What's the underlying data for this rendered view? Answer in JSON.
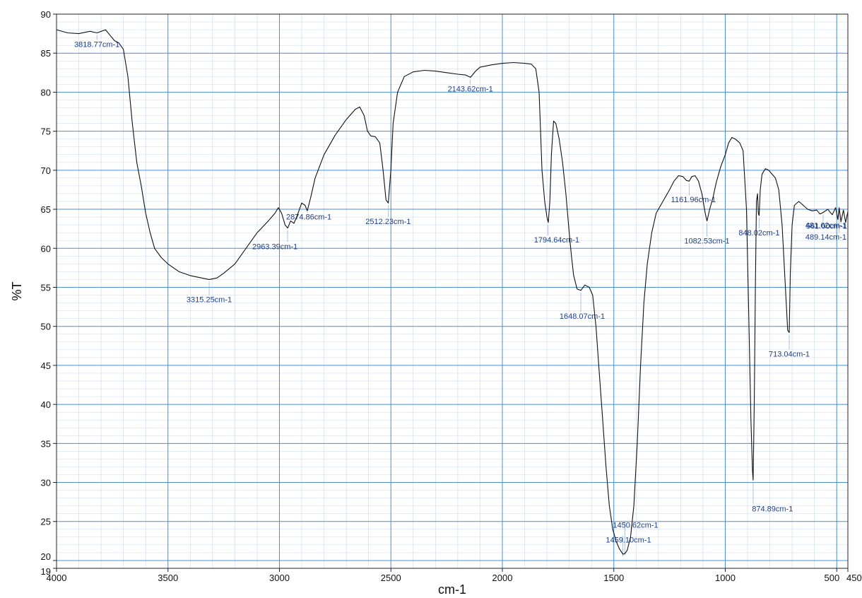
{
  "chart_data": {
    "type": "line",
    "title": "",
    "xlabel": "cm-1",
    "ylabel": "%T",
    "xlim": [
      4000,
      450
    ],
    "ylim": [
      19,
      90
    ],
    "x_axis_reversed": true,
    "grid": true,
    "x_ticks": [
      {
        "value": 4000,
        "label": "4000"
      },
      {
        "value": 3500,
        "label": "3500"
      },
      {
        "value": 3000,
        "label": "3000"
      },
      {
        "value": 2500,
        "label": "2500"
      },
      {
        "value": 2000,
        "label": "2000"
      },
      {
        "value": 1500,
        "label": "1500"
      },
      {
        "value": 1000,
        "label": "1000"
      },
      {
        "value": 500,
        "label": "500"
      },
      {
        "value": 450,
        "label": "450"
      }
    ],
    "y_ticks": [
      {
        "value": 90,
        "label": "90"
      },
      {
        "value": 85,
        "label": "85"
      },
      {
        "value": 80,
        "label": "80"
      },
      {
        "value": 75,
        "label": "75"
      },
      {
        "value": 70,
        "label": "70"
      },
      {
        "value": 65,
        "label": "65"
      },
      {
        "value": 60,
        "label": "60"
      },
      {
        "value": 55,
        "label": "55"
      },
      {
        "value": 50,
        "label": "50"
      },
      {
        "value": 45,
        "label": "45"
      },
      {
        "value": 40,
        "label": "40"
      },
      {
        "value": 35,
        "label": "35"
      },
      {
        "value": 30,
        "label": "30"
      },
      {
        "value": 25,
        "label": "25"
      },
      {
        "value": 20,
        "label": "20"
      },
      {
        "value": 19,
        "label": "19"
      }
    ],
    "series": [
      {
        "points": [
          [
            4000,
            88.0
          ],
          [
            3950,
            87.6
          ],
          [
            3900,
            87.5
          ],
          [
            3850,
            87.8
          ],
          [
            3818,
            87.6
          ],
          [
            3780,
            88.0
          ],
          [
            3760,
            87.3
          ],
          [
            3740,
            86.6
          ],
          [
            3720,
            86.3
          ],
          [
            3700,
            85.5
          ],
          [
            3680,
            82.0
          ],
          [
            3660,
            76.0
          ],
          [
            3640,
            71.0
          ],
          [
            3620,
            68.0
          ],
          [
            3600,
            64.5
          ],
          [
            3580,
            62.0
          ],
          [
            3560,
            60.0
          ],
          [
            3530,
            58.8
          ],
          [
            3500,
            58.0
          ],
          [
            3450,
            57.0
          ],
          [
            3400,
            56.5
          ],
          [
            3350,
            56.2
          ],
          [
            3315,
            56.0
          ],
          [
            3280,
            56.2
          ],
          [
            3250,
            56.8
          ],
          [
            3200,
            58.0
          ],
          [
            3150,
            60.0
          ],
          [
            3100,
            62.0
          ],
          [
            3050,
            63.5
          ],
          [
            3020,
            64.5
          ],
          [
            3005,
            65.2
          ],
          [
            2990,
            64.5
          ],
          [
            2975,
            63.0
          ],
          [
            2963,
            62.6
          ],
          [
            2950,
            63.5
          ],
          [
            2935,
            63.2
          ],
          [
            2920,
            64.2
          ],
          [
            2900,
            65.8
          ],
          [
            2885,
            65.5
          ],
          [
            2875,
            64.8
          ],
          [
            2860,
            66.5
          ],
          [
            2840,
            69.0
          ],
          [
            2800,
            72.0
          ],
          [
            2750,
            74.5
          ],
          [
            2700,
            76.5
          ],
          [
            2660,
            77.8
          ],
          [
            2640,
            78.1
          ],
          [
            2620,
            77.0
          ],
          [
            2605,
            75.0
          ],
          [
            2590,
            74.4
          ],
          [
            2570,
            74.3
          ],
          [
            2550,
            73.5
          ],
          [
            2535,
            70.0
          ],
          [
            2522,
            66.2
          ],
          [
            2512,
            65.8
          ],
          [
            2500,
            70.0
          ],
          [
            2490,
            76.0
          ],
          [
            2470,
            80.0
          ],
          [
            2440,
            82.0
          ],
          [
            2400,
            82.6
          ],
          [
            2350,
            82.8
          ],
          [
            2300,
            82.7
          ],
          [
            2250,
            82.5
          ],
          [
            2200,
            82.3
          ],
          [
            2165,
            82.2
          ],
          [
            2143,
            81.9
          ],
          [
            2120,
            82.7
          ],
          [
            2100,
            83.2
          ],
          [
            2050,
            83.5
          ],
          [
            2000,
            83.7
          ],
          [
            1950,
            83.8
          ],
          [
            1900,
            83.7
          ],
          [
            1870,
            83.6
          ],
          [
            1850,
            83.0
          ],
          [
            1835,
            80.0
          ],
          [
            1822,
            70.0
          ],
          [
            1810,
            66.0
          ],
          [
            1800,
            64.0
          ],
          [
            1794,
            63.3
          ],
          [
            1787,
            66.0
          ],
          [
            1780,
            72.0
          ],
          [
            1770,
            76.3
          ],
          [
            1760,
            76.0
          ],
          [
            1745,
            74.0
          ],
          [
            1730,
            71.0
          ],
          [
            1715,
            67.0
          ],
          [
            1700,
            62.0
          ],
          [
            1690,
            59.0
          ],
          [
            1680,
            56.5
          ],
          [
            1665,
            54.8
          ],
          [
            1648,
            54.6
          ],
          [
            1630,
            55.3
          ],
          [
            1610,
            55.0
          ],
          [
            1595,
            54.0
          ],
          [
            1580,
            50.0
          ],
          [
            1565,
            44.0
          ],
          [
            1550,
            38.0
          ],
          [
            1535,
            32.0
          ],
          [
            1520,
            27.0
          ],
          [
            1505,
            24.0
          ],
          [
            1490,
            22.5
          ],
          [
            1475,
            21.5
          ],
          [
            1459,
            20.8
          ],
          [
            1450,
            20.9
          ],
          [
            1440,
            21.3
          ],
          [
            1425,
            23.0
          ],
          [
            1410,
            27.0
          ],
          [
            1395,
            35.0
          ],
          [
            1380,
            45.0
          ],
          [
            1365,
            53.0
          ],
          [
            1350,
            58.0
          ],
          [
            1330,
            62.0
          ],
          [
            1310,
            64.5
          ],
          [
            1290,
            65.5
          ],
          [
            1270,
            66.5
          ],
          [
            1250,
            67.5
          ],
          [
            1230,
            68.6
          ],
          [
            1210,
            69.3
          ],
          [
            1190,
            69.2
          ],
          [
            1175,
            68.7
          ],
          [
            1162,
            68.6
          ],
          [
            1150,
            69.2
          ],
          [
            1135,
            69.3
          ],
          [
            1120,
            68.6
          ],
          [
            1105,
            67.0
          ],
          [
            1090,
            64.5
          ],
          [
            1082,
            63.5
          ],
          [
            1070,
            65.0
          ],
          [
            1055,
            66.5
          ],
          [
            1040,
            68.5
          ],
          [
            1020,
            70.5
          ],
          [
            1000,
            72.0
          ],
          [
            985,
            73.5
          ],
          [
            970,
            74.2
          ],
          [
            955,
            74.0
          ],
          [
            935,
            73.5
          ],
          [
            920,
            72.5
          ],
          [
            905,
            65.0
          ],
          [
            895,
            52.0
          ],
          [
            885,
            38.0
          ],
          [
            878,
            31.5
          ],
          [
            875,
            30.3
          ],
          [
            870,
            40.0
          ],
          [
            865,
            55.0
          ],
          [
            860,
            66.0
          ],
          [
            855,
            67.0
          ],
          [
            852,
            64.5
          ],
          [
            848,
            64.2
          ],
          [
            843,
            67.5
          ],
          [
            835,
            69.5
          ],
          [
            820,
            70.2
          ],
          [
            805,
            70.0
          ],
          [
            790,
            69.5
          ],
          [
            775,
            69.0
          ],
          [
            760,
            67.5
          ],
          [
            745,
            63.0
          ],
          [
            732,
            56.0
          ],
          [
            720,
            49.5
          ],
          [
            713,
            49.2
          ],
          [
            708,
            57.0
          ],
          [
            700,
            63.0
          ],
          [
            690,
            65.5
          ],
          [
            670,
            66.0
          ],
          [
            650,
            65.5
          ],
          [
            630,
            65.0
          ],
          [
            610,
            64.8
          ],
          [
            590,
            64.9
          ],
          [
            575,
            64.4
          ],
          [
            561,
            64.6
          ],
          [
            540,
            65.0
          ],
          [
            520,
            64.3
          ],
          [
            505,
            65.2
          ],
          [
            495,
            63.7
          ],
          [
            489,
            65.2
          ],
          [
            481,
            63.4
          ],
          [
            470,
            64.9
          ],
          [
            460,
            63.3
          ],
          [
            450,
            64.7
          ]
        ]
      }
    ],
    "annotations": [
      {
        "label": "3818.77cm-1",
        "x": 3818.77,
        "y": 87.6
      },
      {
        "label": "3315.25cm-1",
        "x": 3315.25,
        "y": 56.0
      },
      {
        "label": "2963.39cm-1",
        "x": 2963.39,
        "y": 62.6
      },
      {
        "label": "2874.86cm-1",
        "x": 2874.86,
        "y": 64.8
      },
      {
        "label": "2512.23cm-1",
        "x": 2512.23,
        "y": 65.8
      },
      {
        "label": "2143.62cm-1",
        "x": 2143.62,
        "y": 81.9
      },
      {
        "label": "1794.64cm-1",
        "x": 1794.64,
        "y": 63.3
      },
      {
        "label": "1648.07cm-1",
        "x": 1648.07,
        "y": 54.6
      },
      {
        "label": "1450.62cm-1",
        "x": 1450.62,
        "y": 20.9
      },
      {
        "label": "1459.10cm-1",
        "x": 1459.1,
        "y": 20.8
      },
      {
        "label": "1161.96cm-1",
        "x": 1161.96,
        "y": 68.6
      },
      {
        "label": "1082.53cm-1",
        "x": 1082.53,
        "y": 63.5
      },
      {
        "label": "874.89cm-1",
        "x": 874.89,
        "y": 30.3
      },
      {
        "label": "848.02cm-1",
        "x": 848.02,
        "y": 64.2
      },
      {
        "label": "713.04cm-1",
        "x": 713.04,
        "y": 49.2
      },
      {
        "label": "561.00cm-1",
        "x": 561.0,
        "y": 64.6
      },
      {
        "label": "489.14cm-1",
        "x": 489.14,
        "y": 65.2
      },
      {
        "label": "481.62cm-1",
        "x": 481.62,
        "y": 63.4
      }
    ],
    "colors": {
      "line": "#111111",
      "major_grid": "#4a8fd6",
      "minor_grid": "#c6d8ee",
      "annotation_text": "#1f3d8a",
      "annotation_leader": "#8fb4e0"
    }
  }
}
